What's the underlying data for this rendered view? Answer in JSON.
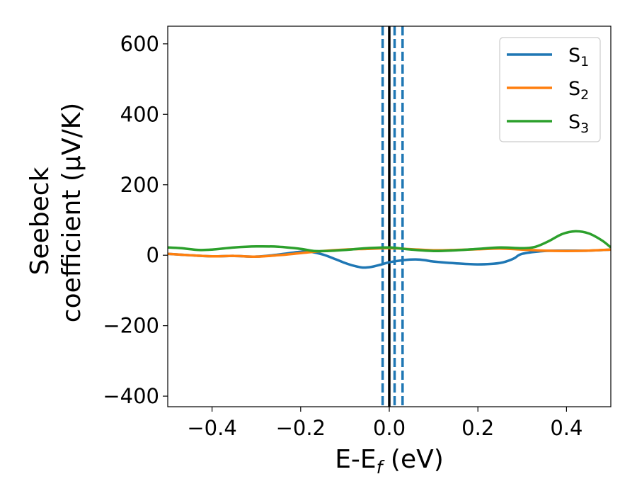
{
  "chart_data": {
    "type": "line",
    "xlabel": "E-E_f (eV)",
    "xlabel_main": "E-E",
    "xlabel_sub": "f",
    "xlabel_unit": " (eV)",
    "ylabel_line1": "Seebeck",
    "ylabel_line2": "coefficient  (μV/K)",
    "ylabel_mu": "μ",
    "xlim": [
      -0.5,
      0.5
    ],
    "ylim": [
      -430,
      650
    ],
    "x_ticks": [
      -0.4,
      -0.2,
      0.0,
      0.2,
      0.4
    ],
    "x_tick_labels": [
      "−0.4",
      "−0.2",
      "0.0",
      "0.2",
      "0.4"
    ],
    "y_ticks": [
      -400,
      -200,
      0,
      200,
      400,
      600
    ],
    "y_tick_labels": [
      "−400",
      "−200",
      "0",
      "200",
      "400",
      "600"
    ],
    "grid": false,
    "legend_position": "top-right",
    "vertical_lines": [
      {
        "x": 0.0,
        "style": "solid",
        "color": "#000000"
      },
      {
        "x": -0.015,
        "style": "dashed",
        "color": "#1f77b4"
      },
      {
        "x": 0.012,
        "style": "dashed",
        "color": "#1f77b4"
      },
      {
        "x": 0.03,
        "style": "dashed",
        "color": "#1f77b4"
      }
    ],
    "series": [
      {
        "name": "S1",
        "label_main": "S",
        "label_sub": "1",
        "color": "#1f77b4",
        "x": [
          -0.5,
          -0.45,
          -0.4,
          -0.35,
          -0.3,
          -0.25,
          -0.2,
          -0.18,
          -0.15,
          -0.12,
          -0.1,
          -0.08,
          -0.06,
          -0.04,
          -0.02,
          0.0,
          0.02,
          0.04,
          0.06,
          0.08,
          0.1,
          0.15,
          0.2,
          0.25,
          0.28,
          0.3,
          0.35,
          0.4,
          0.45,
          0.5
        ],
        "y": [
          4,
          0,
          -3,
          -2,
          -4,
          2,
          10,
          10,
          2,
          -12,
          -22,
          -30,
          -35,
          -33,
          -27,
          -20,
          -16,
          -13,
          -12,
          -14,
          -18,
          -23,
          -26,
          -22,
          -10,
          4,
          12,
          13,
          13,
          16
        ]
      },
      {
        "name": "S2",
        "label_main": "S",
        "label_sub": "2",
        "color": "#ff7f0e",
        "x": [
          -0.5,
          -0.45,
          -0.4,
          -0.35,
          -0.3,
          -0.25,
          -0.2,
          -0.15,
          -0.1,
          -0.05,
          0.0,
          0.05,
          0.1,
          0.15,
          0.2,
          0.25,
          0.3,
          0.35,
          0.4,
          0.45,
          0.5
        ],
        "y": [
          4,
          0,
          -3,
          -2,
          -4,
          0,
          6,
          12,
          16,
          18,
          20,
          17,
          14,
          15,
          17,
          19,
          16,
          13,
          12,
          13,
          16
        ]
      },
      {
        "name": "S3",
        "label_main": "S",
        "label_sub": "3",
        "color": "#2ca02c",
        "x": [
          -0.5,
          -0.47,
          -0.43,
          -0.4,
          -0.35,
          -0.3,
          -0.25,
          -0.2,
          -0.17,
          -0.14,
          -0.1,
          -0.05,
          0.0,
          0.05,
          0.1,
          0.15,
          0.2,
          0.25,
          0.3,
          0.33,
          0.36,
          0.39,
          0.42,
          0.45,
          0.48,
          0.5
        ],
        "y": [
          22,
          20,
          15,
          16,
          22,
          25,
          24,
          18,
          12,
          12,
          15,
          20,
          22,
          16,
          12,
          14,
          18,
          22,
          20,
          24,
          40,
          60,
          68,
          62,
          42,
          22
        ]
      }
    ]
  }
}
